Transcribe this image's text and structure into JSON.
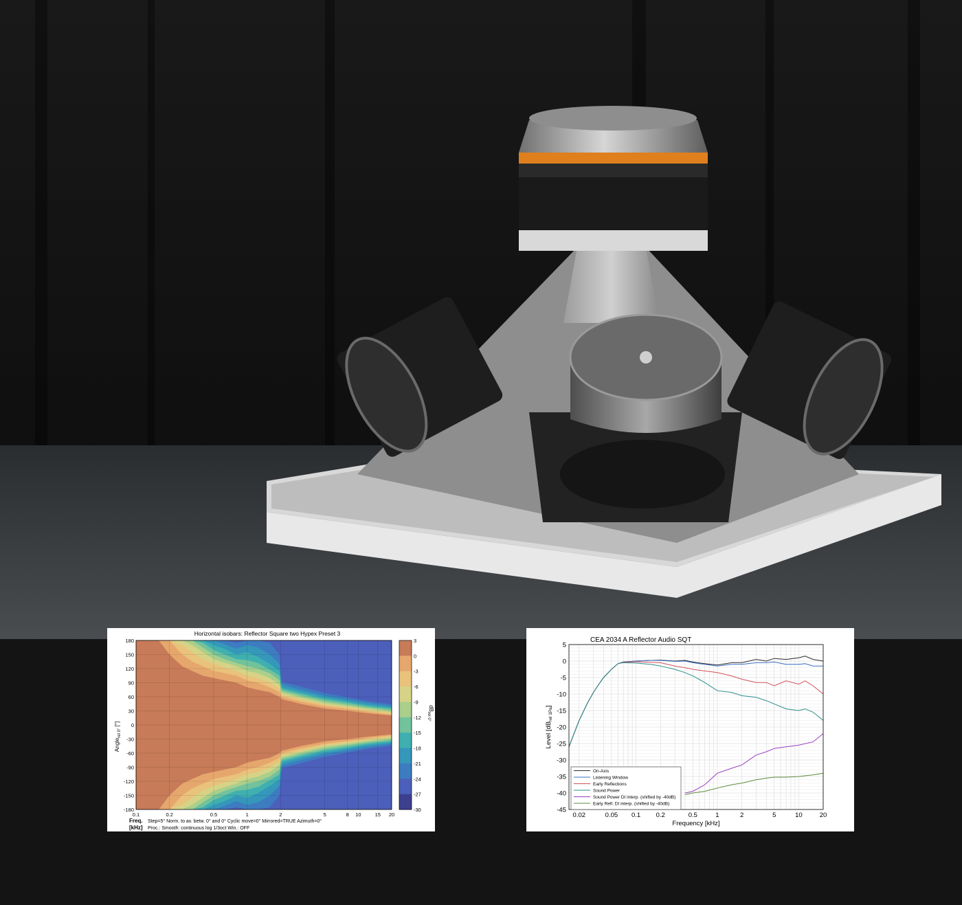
{
  "chart_data": [
    {
      "type": "heatmap",
      "title": "Horizontal isobars: Reflector  Square two  Hypex Preset 3",
      "xlabel_line1": "Freq.",
      "xlabel_line2": "[kHz]",
      "ylabel": "Angle",
      "ylabel_sub": "rel 0°",
      "ylabel_unit": " [°]",
      "x_scale": "log",
      "xlim": [
        0.1,
        20
      ],
      "ylim": [
        -180,
        180
      ],
      "x_ticks": [
        {
          "value": 0.1,
          "label": "0.1"
        },
        {
          "value": 0.2,
          "label": "0.2"
        },
        {
          "value": 0.5,
          "label": "0.5"
        },
        {
          "value": 1,
          "label": "1"
        },
        {
          "value": 2,
          "label": "2"
        },
        {
          "value": 5,
          "label": "5"
        },
        {
          "value": 8,
          "label": "8"
        },
        {
          "value": 10,
          "label": "10"
        },
        {
          "value": 15,
          "label": "15"
        },
        {
          "value": 20,
          "label": "20"
        }
      ],
      "y_ticks": [
        {
          "value": 180,
          "label": "180"
        },
        {
          "value": 150,
          "label": "150"
        },
        {
          "value": 120,
          "label": "120"
        },
        {
          "value": 90,
          "label": "90"
        },
        {
          "value": 60,
          "label": "60"
        },
        {
          "value": 30,
          "label": "30"
        },
        {
          "value": 0,
          "label": "0"
        },
        {
          "value": -30,
          "label": "-30"
        },
        {
          "value": -60,
          "label": "-60"
        },
        {
          "value": -90,
          "label": "-90"
        },
        {
          "value": -120,
          "label": "-120"
        },
        {
          "value": -150,
          "label": "-150"
        },
        {
          "value": -180,
          "label": "-180"
        }
      ],
      "colorbar": {
        "label": "dB",
        "label_sub": "rel 0°",
        "ticks": [
          {
            "value": 3,
            "label": "3"
          },
          {
            "value": 0,
            "label": "0"
          },
          {
            "value": -3,
            "label": "-3"
          },
          {
            "value": -6,
            "label": "-6"
          },
          {
            "value": -9,
            "label": "-9"
          },
          {
            "value": -12,
            "label": "-12"
          },
          {
            "value": -15,
            "label": "-15"
          },
          {
            "value": -18,
            "label": "-18"
          },
          {
            "value": -21,
            "label": "-21"
          },
          {
            "value": -24,
            "label": "-24"
          },
          {
            "value": -27,
            "label": "-27"
          },
          {
            "value": -30,
            "label": "-30"
          }
        ],
        "colors": [
          "#c77b58",
          "#d48e61",
          "#e6a76d",
          "#e9c27c",
          "#d6d387",
          "#a9cf8b",
          "#72c29c",
          "#3fb0af",
          "#3597ba",
          "#3d7cc0",
          "#4c5fba",
          "#3d3f8f"
        ]
      },
      "contour_half_widths_deg": {
        "freqs_khz": [
          0.1,
          0.16,
          0.2,
          0.26,
          0.32,
          0.4,
          0.5,
          0.63,
          0.8,
          1,
          1.25,
          1.6,
          1.95,
          2.05,
          3,
          5,
          8,
          12,
          20
        ],
        "levels_db": [
          -3,
          -6,
          -9,
          -12,
          -15,
          -18,
          -21,
          -24,
          -27
        ],
        "widths": [
          [
            180,
            180,
            150,
            125,
            115,
            105,
            100,
            95,
            90,
            80,
            75,
            70,
            60,
            55,
            45,
            35,
            30,
            25,
            20
          ],
          [
            180,
            180,
            180,
            150,
            135,
            125,
            115,
            110,
            105,
            95,
            90,
            80,
            70,
            60,
            50,
            40,
            34,
            28,
            22
          ],
          [
            180,
            180,
            180,
            170,
            155,
            140,
            130,
            122,
            115,
            105,
            100,
            90,
            78,
            64,
            55,
            43,
            37,
            31,
            25
          ],
          [
            180,
            180,
            180,
            180,
            170,
            155,
            140,
            132,
            125,
            115,
            110,
            100,
            85,
            68,
            58,
            46,
            40,
            34,
            28
          ],
          [
            180,
            180,
            180,
            180,
            180,
            165,
            150,
            140,
            132,
            125,
            120,
            110,
            95,
            72,
            62,
            50,
            43,
            37,
            31
          ],
          [
            180,
            180,
            180,
            180,
            180,
            175,
            160,
            150,
            140,
            138,
            132,
            118,
            105,
            76,
            66,
            54,
            47,
            40,
            34
          ],
          [
            180,
            180,
            180,
            180,
            180,
            180,
            170,
            162,
            150,
            155,
            145,
            130,
            115,
            80,
            70,
            58,
            50,
            43,
            37
          ],
          [
            180,
            180,
            180,
            180,
            180,
            180,
            180,
            172,
            162,
            170,
            165,
            150,
            130,
            86,
            75,
            62,
            54,
            47,
            40
          ],
          [
            180,
            180,
            180,
            180,
            180,
            180,
            180,
            180,
            175,
            180,
            180,
            175,
            150,
            92,
            82,
            68,
            59,
            51,
            44
          ]
        ]
      },
      "footer_lines": [
        "Step=5°   Norm. to av. betw. 0° and 0°   Cyclic move=0°   Mirrored=TRUE   Azimuth=0°",
        "Proc.: Smooth: continuous log 1/3oct     Win.: OFF"
      ]
    },
    {
      "type": "line",
      "title": "CEA 2034 A     Reflector Audio  SQT",
      "xlabel": "Frequency [kHz]",
      "ylabel": "Level [dB",
      "ylabel_sub": "rel 1Pa",
      "ylabel_end": "]",
      "x_scale": "log",
      "xlim": [
        0.015,
        20
      ],
      "ylim": [
        -45,
        5
      ],
      "grid": true,
      "legend_position": "bottom-left",
      "x_ticks": [
        {
          "value": 0.02,
          "label": "0.02"
        },
        {
          "value": 0.05,
          "label": "0.05"
        },
        {
          "value": 0.1,
          "label": "0.1"
        },
        {
          "value": 0.2,
          "label": "0.2"
        },
        {
          "value": 0.5,
          "label": "0.5"
        },
        {
          "value": 1,
          "label": "1"
        },
        {
          "value": 2,
          "label": "2"
        },
        {
          "value": 5,
          "label": "5"
        },
        {
          "value": 10,
          "label": "10"
        },
        {
          "value": 20,
          "label": "20"
        }
      ],
      "y_ticks": [
        {
          "value": 5,
          "label": "5"
        },
        {
          "value": 0,
          "label": "0"
        },
        {
          "value": -5,
          "label": "-5"
        },
        {
          "value": -10,
          "label": "-10"
        },
        {
          "value": -15,
          "label": "-15"
        },
        {
          "value": -20,
          "label": "-20"
        },
        {
          "value": -25,
          "label": "-25"
        },
        {
          "value": -30,
          "label": "-30"
        },
        {
          "value": -35,
          "label": "-35"
        },
        {
          "value": -40,
          "label": "-40"
        },
        {
          "value": -45,
          "label": "-45"
        }
      ],
      "series": [
        {
          "name": "On-Axis",
          "color": "#2b2b2b",
          "x": [
            0.015,
            0.02,
            0.025,
            0.03,
            0.035,
            0.04,
            0.05,
            0.06,
            0.07,
            0.1,
            0.15,
            0.2,
            0.3,
            0.4,
            0.5,
            0.7,
            1,
            1.5,
            2,
            3,
            4,
            5,
            7,
            10,
            12,
            15,
            20
          ],
          "y": [
            -26,
            -18,
            -13,
            -9.5,
            -7,
            -5,
            -2.5,
            -0.8,
            -0.3,
            0,
            0.2,
            0.3,
            0,
            0.2,
            -0.3,
            -0.8,
            -1.2,
            -0.5,
            -0.5,
            0.5,
            0,
            0.8,
            0.5,
            1,
            1.5,
            0.5,
            0
          ]
        },
        {
          "name": "Listening Window",
          "color": "#3a6fc4",
          "x": [
            0.015,
            0.02,
            0.025,
            0.03,
            0.035,
            0.04,
            0.05,
            0.06,
            0.07,
            0.1,
            0.15,
            0.2,
            0.3,
            0.4,
            0.5,
            0.7,
            1,
            1.5,
            2,
            3,
            4,
            5,
            7,
            10,
            12,
            15,
            20
          ],
          "y": [
            -26,
            -18,
            -13,
            -9.5,
            -7,
            -5,
            -2.5,
            -0.8,
            -0.3,
            0,
            0.2,
            0.2,
            -0.1,
            0,
            -0.5,
            -1,
            -1.5,
            -1,
            -1,
            -0.5,
            -0.5,
            -0.3,
            -1,
            -1,
            -0.8,
            -1.5,
            -1.5
          ]
        },
        {
          "name": "Early Reflections",
          "color": "#d2505a",
          "x": [
            0.015,
            0.02,
            0.025,
            0.03,
            0.035,
            0.04,
            0.05,
            0.06,
            0.07,
            0.1,
            0.15,
            0.2,
            0.3,
            0.4,
            0.5,
            0.7,
            1,
            1.5,
            2,
            3,
            4,
            5,
            7,
            10,
            12,
            15,
            20
          ],
          "y": [
            -26,
            -18,
            -13,
            -9.5,
            -7,
            -5,
            -2.5,
            -0.8,
            -0.4,
            -0.2,
            -0.4,
            -0.5,
            -1.5,
            -2,
            -2.5,
            -3,
            -3.5,
            -4.5,
            -5.5,
            -6.5,
            -6.5,
            -7.5,
            -6,
            -7,
            -6,
            -7.5,
            -10
          ]
        },
        {
          "name": "Sound Power",
          "color": "#2a8f8a",
          "x": [
            0.015,
            0.02,
            0.025,
            0.03,
            0.035,
            0.04,
            0.05,
            0.06,
            0.07,
            0.1,
            0.15,
            0.2,
            0.3,
            0.4,
            0.5,
            0.7,
            1,
            1.5,
            2,
            3,
            4,
            5,
            7,
            10,
            12,
            15,
            20
          ],
          "y": [
            -26,
            -18,
            -13,
            -9.5,
            -7,
            -5,
            -2.5,
            -0.8,
            -0.5,
            -0.6,
            -1,
            -1.5,
            -2.5,
            -3.5,
            -4.5,
            -6.5,
            -9,
            -9.5,
            -10.5,
            -11,
            -12,
            -13,
            -14.5,
            -15,
            -14.5,
            -15.5,
            -18
          ]
        },
        {
          "name": "Sound Power DI interp. (shifted by -40dB)",
          "color": "#9a3fc0",
          "x": [
            0.4,
            0.5,
            0.7,
            1,
            1.5,
            2,
            3,
            4,
            5,
            7,
            10,
            15,
            20
          ],
          "y": [
            -40,
            -39.5,
            -37.5,
            -34,
            -32.5,
            -31.5,
            -28.5,
            -27.5,
            -26.5,
            -26,
            -25.5,
            -24.5,
            -22
          ]
        },
        {
          "name": "Early Refl. DI interp. (shifted by -40dB)",
          "color": "#5e8a3a",
          "x": [
            0.4,
            0.5,
            0.7,
            1,
            1.5,
            2,
            3,
            4,
            5,
            7,
            10,
            15,
            20
          ],
          "y": [
            -40.5,
            -40,
            -39.5,
            -38.5,
            -37.5,
            -37,
            -36,
            -35.5,
            -35.2,
            -35.2,
            -35,
            -34.5,
            -34
          ]
        }
      ]
    }
  ]
}
